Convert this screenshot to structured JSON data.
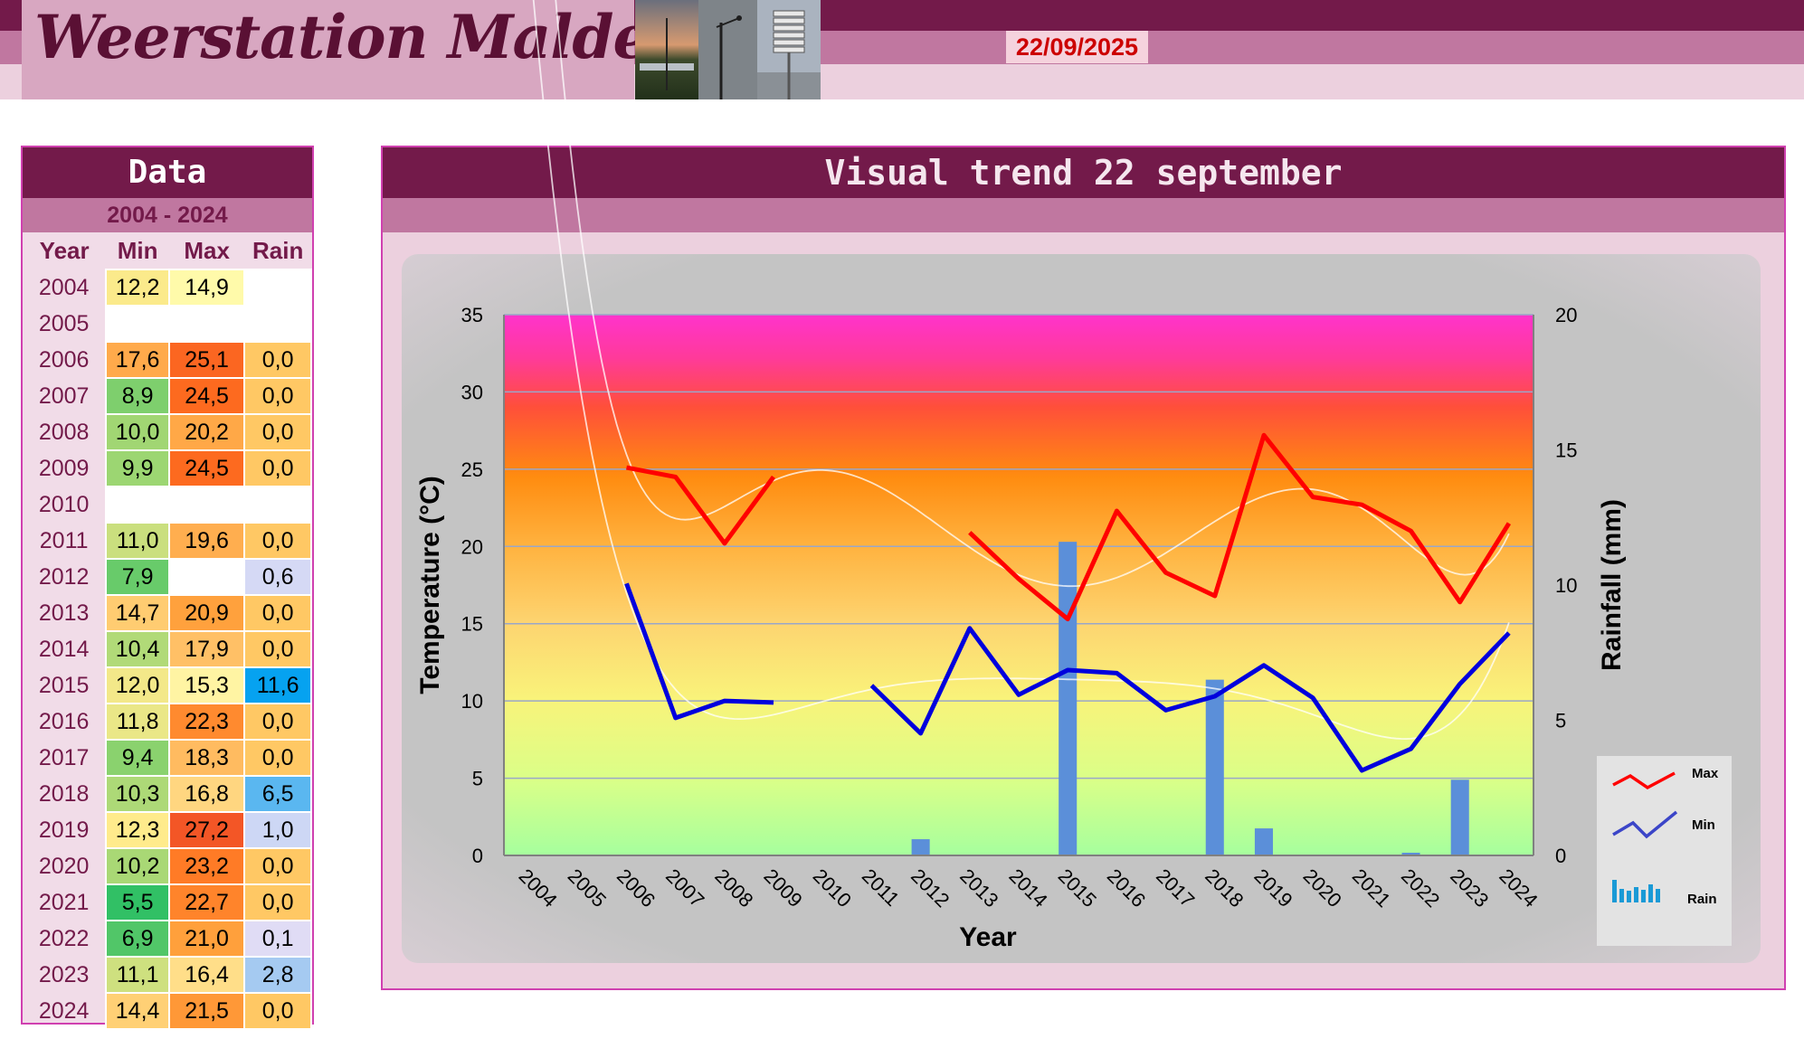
{
  "header": {
    "site_title": "Weerstation Malderen",
    "date": "22/09/2025"
  },
  "table": {
    "title": "Data",
    "period": "2004 - 2024",
    "columns": [
      "Year",
      "Min",
      "Max",
      "Rain"
    ],
    "rows": [
      {
        "year": "2004",
        "min": "12,2",
        "max": "14,9",
        "rain": ""
      },
      {
        "year": "2005",
        "min": "",
        "max": "",
        "rain": ""
      },
      {
        "year": "2006",
        "min": "17,6",
        "max": "25,1",
        "rain": "0,0"
      },
      {
        "year": "2007",
        "min": "8,9",
        "max": "24,5",
        "rain": "0,0"
      },
      {
        "year": "2008",
        "min": "10,0",
        "max": "20,2",
        "rain": "0,0"
      },
      {
        "year": "2009",
        "min": "9,9",
        "max": "24,5",
        "rain": "0,0"
      },
      {
        "year": "2010",
        "min": "",
        "max": "",
        "rain": ""
      },
      {
        "year": "2011",
        "min": "11,0",
        "max": "19,6",
        "rain": "0,0"
      },
      {
        "year": "2012",
        "min": "7,9",
        "max": "",
        "rain": "0,6"
      },
      {
        "year": "2013",
        "min": "14,7",
        "max": "20,9",
        "rain": "0,0"
      },
      {
        "year": "2014",
        "min": "10,4",
        "max": "17,9",
        "rain": "0,0"
      },
      {
        "year": "2015",
        "min": "12,0",
        "max": "15,3",
        "rain": "11,6"
      },
      {
        "year": "2016",
        "min": "11,8",
        "max": "22,3",
        "rain": "0,0"
      },
      {
        "year": "2017",
        "min": "9,4",
        "max": "18,3",
        "rain": "0,0"
      },
      {
        "year": "2018",
        "min": "10,3",
        "max": "16,8",
        "rain": "6,5"
      },
      {
        "year": "2019",
        "min": "12,3",
        "max": "27,2",
        "rain": "1,0"
      },
      {
        "year": "2020",
        "min": "10,2",
        "max": "23,2",
        "rain": "0,0"
      },
      {
        "year": "2021",
        "min": "5,5",
        "max": "22,7",
        "rain": "0,0"
      },
      {
        "year": "2022",
        "min": "6,9",
        "max": "21,0",
        "rain": "0,1"
      },
      {
        "year": "2023",
        "min": "11,1",
        "max": "16,4",
        "rain": "2,8"
      },
      {
        "year": "2024",
        "min": "14,4",
        "max": "21,5",
        "rain": "0,0"
      }
    ]
  },
  "chart_panel": {
    "title": "Visual trend 22 september"
  },
  "colors": {
    "brand_dark": "#731a4a",
    "brand_mid": "#c077a0",
    "brand_light": "#ecd0de",
    "max_line": "#ff0000",
    "min_line": "#0000dd",
    "rain_bar": "#5b8fd9",
    "date_text": "#cc0000"
  },
  "chart_data": {
    "type": "line",
    "categories": [
      "2004",
      "2005",
      "2006",
      "2007",
      "2008",
      "2009",
      "2010",
      "2011",
      "2012",
      "2013",
      "2014",
      "2015",
      "2016",
      "2017",
      "2018",
      "2019",
      "2020",
      "2021",
      "2022",
      "2023",
      "2024"
    ],
    "xlabel": "Year",
    "ylabel": "Temperature (°C)",
    "y2label": "Rainfall (mm)",
    "ylim": [
      0,
      35
    ],
    "y2lim": [
      0,
      20
    ],
    "yticks": [
      0,
      5,
      10,
      15,
      20,
      25,
      30,
      35
    ],
    "y2ticks": [
      0,
      5,
      10,
      15,
      20
    ],
    "grid": true,
    "legend_position": "right",
    "series": [
      {
        "name": "Max",
        "type": "line",
        "axis": "left",
        "values": [
          null,
          null,
          25.1,
          24.5,
          20.2,
          24.5,
          null,
          null,
          null,
          20.9,
          17.9,
          15.3,
          22.3,
          18.3,
          16.8,
          27.2,
          23.2,
          22.7,
          21.0,
          16.4,
          21.5
        ]
      },
      {
        "name": "Min",
        "type": "line",
        "axis": "left",
        "values": [
          null,
          null,
          17.6,
          8.9,
          10.0,
          9.9,
          null,
          11.0,
          7.9,
          14.7,
          10.4,
          12.0,
          11.8,
          9.4,
          10.3,
          12.3,
          10.2,
          5.5,
          6.9,
          11.1,
          14.4
        ]
      },
      {
        "name": "Rain",
        "type": "bar",
        "axis": "right",
        "values": [
          null,
          null,
          0.0,
          0.0,
          0.0,
          0.0,
          null,
          0.0,
          0.6,
          0.0,
          0.0,
          11.6,
          0.0,
          0.0,
          6.5,
          1.0,
          0.0,
          0.0,
          0.1,
          2.8,
          0.0
        ]
      }
    ]
  }
}
